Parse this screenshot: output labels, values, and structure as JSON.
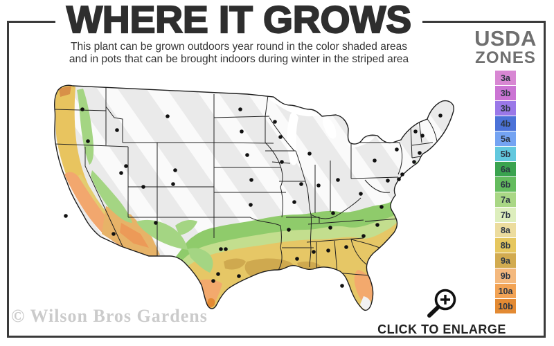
{
  "header": {
    "title": "WHERE IT GROWS",
    "subtitle_line1": "This plant can be grown outdoors year round in the color shaded areas",
    "subtitle_line2": "and in pots that can be brought indoors during winter in the striped area"
  },
  "legend": {
    "title_line1": "USDA",
    "title_line2": "ZONES",
    "zones": [
      {
        "label": "3a",
        "color": "#d887d3"
      },
      {
        "label": "3b",
        "color": "#cb74d4"
      },
      {
        "label": "3b",
        "color": "#9a78e8"
      },
      {
        "label": "4b",
        "color": "#4b72d8"
      },
      {
        "label": "5a",
        "color": "#74a3f2"
      },
      {
        "label": "5b",
        "color": "#62c8de"
      },
      {
        "label": "6a",
        "color": "#3aa34f"
      },
      {
        "label": "6b",
        "color": "#64bc5e"
      },
      {
        "label": "7a",
        "color": "#a9d785"
      },
      {
        "label": "7b",
        "color": "#ddeebd"
      },
      {
        "label": "8a",
        "color": "#ecdc9e"
      },
      {
        "label": "8b",
        "color": "#e6c75f"
      },
      {
        "label": "9a",
        "color": "#d2ab50"
      },
      {
        "label": "9b",
        "color": "#f4b97e"
      },
      {
        "label": "10a",
        "color": "#f2a355"
      },
      {
        "label": "10b",
        "color": "#e38a33"
      }
    ]
  },
  "map": {
    "colors": {
      "non_hardy_gray": "#eaeaea",
      "stripe_white": "#ffffff",
      "hardy_green": "#8fcb6b",
      "light_green": "#c3de8e",
      "gold": "#e6c766",
      "khaki": "#cfa94f",
      "orange": "#f3a96d",
      "deep_orange": "#e38a33",
      "coast_gold": "#e8c45f",
      "coast_salmon": "#f2a76e",
      "state_border": "#222222"
    }
  },
  "footer": {
    "watermark": "© Wilson Bros Gardens",
    "enlarge_label": "CLICK TO ENLARGE"
  }
}
